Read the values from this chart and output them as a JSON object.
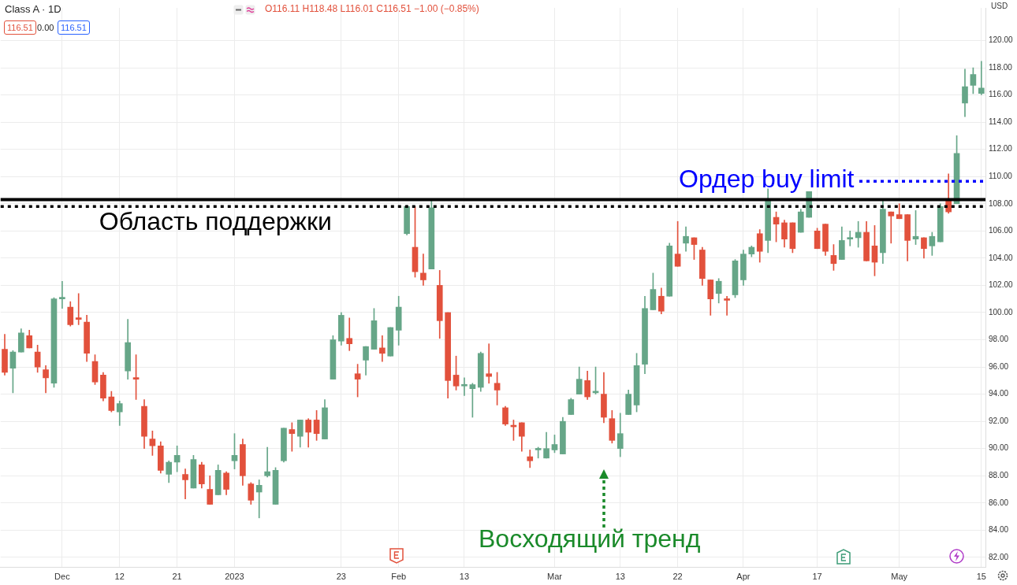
{
  "chart_data": {
    "type": "candlestick",
    "title": "Class A · 1D",
    "ylabel": "USD",
    "categories": [
      null,
      null,
      null,
      null,
      null,
      null,
      null,
      "Dec",
      null,
      null,
      null,
      null,
      null,
      null,
      "12",
      null,
      null,
      null,
      null,
      null,
      null,
      "21",
      null,
      null,
      null,
      null,
      null,
      null,
      "2023",
      null,
      null,
      null,
      null,
      null,
      null,
      null,
      null,
      null,
      null,
      null,
      null,
      "23",
      null,
      null,
      null,
      null,
      null,
      null,
      "Feb",
      null,
      null,
      null,
      null,
      null,
      null,
      null,
      "13",
      null,
      null,
      null,
      null,
      null,
      null,
      null,
      null,
      null,
      null,
      "Mar",
      null,
      null,
      null,
      null,
      null,
      null,
      null,
      "13",
      null,
      null,
      null,
      null,
      null,
      null,
      "22",
      null,
      null,
      null,
      null,
      null,
      null,
      null,
      "Apr",
      null,
      null,
      null,
      null,
      null,
      null,
      null,
      null,
      "17",
      null,
      null,
      null,
      null,
      null,
      null,
      null,
      null,
      null,
      "May",
      null,
      null,
      null,
      null,
      null,
      null,
      null,
      null,
      null,
      "15"
    ],
    "ohlc": [
      [
        97.3,
        98.4,
        95.4,
        95.6
      ],
      [
        95.9,
        97.2,
        94.1,
        97.1
      ],
      [
        97.1,
        98.8,
        97.1,
        98.5
      ],
      [
        98.3,
        98.7,
        97.4,
        97.4
      ],
      [
        97.1,
        97.6,
        95.6,
        96.0
      ],
      [
        95.8,
        96.1,
        94.1,
        95.2
      ],
      [
        94.8,
        101.1,
        94.5,
        101.0
      ],
      [
        101.0,
        102.3,
        100.3,
        101.0
      ],
      [
        100.4,
        100.8,
        99.0,
        99.1
      ],
      [
        99.5,
        101.4,
        99.1,
        99.5
      ],
      [
        99.3,
        99.8,
        96.4,
        97.0
      ],
      [
        96.4,
        96.9,
        94.7,
        94.9
      ],
      [
        95.4,
        95.6,
        93.5,
        93.7
      ],
      [
        93.8,
        94.2,
        92.7,
        92.8
      ],
      [
        92.7,
        93.5,
        91.7,
        93.3
      ],
      [
        95.7,
        99.5,
        95.1,
        97.8
      ],
      [
        95.2,
        96.9,
        93.6,
        95.1
      ],
      [
        93.1,
        93.6,
        90.0,
        90.9
      ],
      [
        90.7,
        91.3,
        89.5,
        90.2
      ],
      [
        90.2,
        90.5,
        88.2,
        88.4
      ],
      [
        88.1,
        89.1,
        87.5,
        89.0
      ],
      [
        89.0,
        90.2,
        88.3,
        89.5
      ],
      [
        88.1,
        88.5,
        86.3,
        87.7
      ],
      [
        87.1,
        89.5,
        87.1,
        89.2
      ],
      [
        88.8,
        89.0,
        87.1,
        87.4
      ],
      [
        87.0,
        88.0,
        85.9,
        85.9
      ],
      [
        86.6,
        88.8,
        86.6,
        88.4
      ],
      [
        88.2,
        88.3,
        86.6,
        87.0
      ],
      [
        89.1,
        91.1,
        88.5,
        89.5
      ],
      [
        90.3,
        90.7,
        87.3,
        88.0
      ],
      [
        87.4,
        87.5,
        85.9,
        86.2
      ],
      [
        86.8,
        87.7,
        84.9,
        87.3
      ],
      [
        88.0,
        90.1,
        87.9,
        88.3
      ],
      [
        85.9,
        88.6,
        85.9,
        88.4
      ],
      [
        89.1,
        91.5,
        89.0,
        91.5
      ],
      [
        91.4,
        91.9,
        89.8,
        91.1
      ],
      [
        90.9,
        92.1,
        90.1,
        92.1
      ],
      [
        92.1,
        92.2,
        90.1,
        91.2
      ],
      [
        92.1,
        92.8,
        90.6,
        91.1
      ],
      [
        90.7,
        93.6,
        90.7,
        93.0
      ],
      [
        95.1,
        98.3,
        95.1,
        98.0
      ],
      [
        97.9,
        100.0,
        97.6,
        99.8
      ],
      [
        98.1,
        99.6,
        97.2,
        97.7
      ],
      [
        95.5,
        96.2,
        93.8,
        95.1
      ],
      [
        96.5,
        97.5,
        95.4,
        97.5
      ],
      [
        97.3,
        100.3,
        97.3,
        99.4
      ],
      [
        97.4,
        98.3,
        96.4,
        97.0
      ],
      [
        96.8,
        98.9,
        96.8,
        98.9
      ],
      [
        98.7,
        101.2,
        97.6,
        100.4
      ],
      [
        105.8,
        107.9,
        105.7,
        107.8
      ],
      [
        104.8,
        107.8,
        102.6,
        103.0
      ],
      [
        102.9,
        104.3,
        102.0,
        102.4
      ],
      [
        103.2,
        108.3,
        103.2,
        107.7
      ],
      [
        102.0,
        103.1,
        98.1,
        99.4
      ],
      [
        100.0,
        100.0,
        93.7,
        95.0
      ],
      [
        95.4,
        96.8,
        94.3,
        94.6
      ],
      [
        94.6,
        95.2,
        93.9,
        94.7
      ],
      [
        94.4,
        94.8,
        92.3,
        94.7
      ],
      [
        94.5,
        97.1,
        94.2,
        97.0
      ],
      [
        95.5,
        97.7,
        94.8,
        95.3
      ],
      [
        94.8,
        95.6,
        93.2,
        94.3
      ],
      [
        93.0,
        93.1,
        91.7,
        91.8
      ],
      [
        91.6,
        92.1,
        90.6,
        91.6
      ],
      [
        91.9,
        91.9,
        89.8,
        90.9
      ],
      [
        89.4,
        89.9,
        88.6,
        89.1
      ],
      [
        89.9,
        90.1,
        89.3,
        89.9
      ],
      [
        89.3,
        91.2,
        89.3,
        90.0
      ],
      [
        89.9,
        91.0,
        89.7,
        90.3
      ],
      [
        89.6,
        92.3,
        89.6,
        92.0
      ],
      [
        92.5,
        93.7,
        92.5,
        93.6
      ],
      [
        94.0,
        96.0,
        94.0,
        95.1
      ],
      [
        95.0,
        95.7,
        93.6,
        93.8
      ],
      [
        94.1,
        96.0,
        94.0,
        94.2
      ],
      [
        94.0,
        95.6,
        91.9,
        92.3
      ],
      [
        92.2,
        92.8,
        90.4,
        90.6
      ],
      [
        90.0,
        92.6,
        89.4,
        91.1
      ],
      [
        92.5,
        94.3,
        92.5,
        94.0
      ],
      [
        93.2,
        97.0,
        92.7,
        96.1
      ],
      [
        96.2,
        101.2,
        95.5,
        100.3
      ],
      [
        100.2,
        102.9,
        100.2,
        101.7
      ],
      [
        101.2,
        101.8,
        99.9,
        100.1
      ],
      [
        101.2,
        105.1,
        101.2,
        104.9
      ],
      [
        104.3,
        106.7,
        103.4,
        103.4
      ],
      [
        105.1,
        106.3,
        104.5,
        105.6
      ],
      [
        105.5,
        105.5,
        103.9,
        105.0
      ],
      [
        104.6,
        104.8,
        102.0,
        102.5
      ],
      [
        102.4,
        102.4,
        99.8,
        101.0
      ],
      [
        101.4,
        102.5,
        100.7,
        102.3
      ],
      [
        100.9,
        101.2,
        99.8,
        100.9
      ],
      [
        101.3,
        103.9,
        101.1,
        103.8
      ],
      [
        102.4,
        104.6,
        102.0,
        104.3
      ],
      [
        104.3,
        104.9,
        104.1,
        104.8
      ],
      [
        105.8,
        106.1,
        103.7,
        104.5
      ],
      [
        105.3,
        109.1,
        104.4,
        108.3
      ],
      [
        107.0,
        107.4,
        105.2,
        106.5
      ],
      [
        106.6,
        106.8,
        104.8,
        105.4
      ],
      [
        106.6,
        106.6,
        104.4,
        104.7
      ],
      [
        105.9,
        107.6,
        105.9,
        107.4
      ],
      [
        107.0,
        108.9,
        107.0,
        108.9
      ],
      [
        106.0,
        106.2,
        104.7,
        104.7
      ],
      [
        106.5,
        106.5,
        104.2,
        104.5
      ],
      [
        104.2,
        105.0,
        103.1,
        103.6
      ],
      [
        103.9,
        106.3,
        103.9,
        105.3
      ],
      [
        105.4,
        106.0,
        104.9,
        105.5
      ],
      [
        105.5,
        106.7,
        104.8,
        105.9
      ],
      [
        105.9,
        106.7,
        103.8,
        103.8
      ],
      [
        104.9,
        106.4,
        102.7,
        103.7
      ],
      [
        104.4,
        108.2,
        103.6,
        107.6
      ],
      [
        107.4,
        107.4,
        105.1,
        107.1
      ],
      [
        107.2,
        108.0,
        106.9,
        106.9
      ],
      [
        107.2,
        107.2,
        103.8,
        105.3
      ],
      [
        105.4,
        107.5,
        105.0,
        105.6
      ],
      [
        105.5,
        105.5,
        104.0,
        104.7
      ],
      [
        104.9,
        105.9,
        104.2,
        105.6
      ],
      [
        105.2,
        108.0,
        105.2,
        107.8
      ],
      [
        108.2,
        110.2,
        107.3,
        107.4
      ],
      [
        108.0,
        113.0,
        108.0,
        111.7
      ],
      [
        115.4,
        117.9,
        114.4,
        116.6
      ],
      [
        116.7,
        118.0,
        116.1,
        117.5
      ],
      [
        116.11,
        118.48,
        116.01,
        116.51
      ]
    ],
    "colors": [
      "#e2513c",
      "#66a688",
      "#66a688",
      "#e2513c",
      "#e2513c",
      "#e2513c",
      "#66a688",
      "#66a688",
      "#e2513c",
      "#e2513c",
      "#e2513c",
      "#e2513c",
      "#e2513c",
      "#e2513c",
      "#66a688",
      "#66a688",
      "#e2513c",
      "#e2513c",
      "#e2513c",
      "#e2513c",
      "#66a688",
      "#66a688",
      "#e2513c",
      "#66a688",
      "#e2513c",
      "#e2513c",
      "#66a688",
      "#e2513c",
      "#66a688",
      "#e2513c",
      "#e2513c",
      "#66a688",
      "#66a688",
      "#66a688",
      "#66a688",
      "#e2513c",
      "#66a688",
      "#e2513c",
      "#e2513c",
      "#66a688",
      "#66a688",
      "#66a688",
      "#e2513c",
      "#e2513c",
      "#66a688",
      "#66a688",
      "#e2513c",
      "#66a688",
      "#66a688",
      "#66a688",
      "#e2513c",
      "#e2513c",
      "#66a688",
      "#e2513c",
      "#e2513c",
      "#e2513c",
      "#66a688",
      "#66a688",
      "#66a688",
      "#e2513c",
      "#e2513c",
      "#e2513c",
      "#e2513c",
      "#e2513c",
      "#e2513c",
      "#66a688",
      "#66a688",
      "#66a688",
      "#66a688",
      "#66a688",
      "#66a688",
      "#e2513c",
      "#66a688",
      "#e2513c",
      "#e2513c",
      "#66a688",
      "#66a688",
      "#66a688",
      "#66a688",
      "#66a688",
      "#e2513c",
      "#66a688",
      "#e2513c",
      "#66a688",
      "#e2513c",
      "#e2513c",
      "#e2513c",
      "#66a688",
      "#e2513c",
      "#66a688",
      "#66a688",
      "#66a688",
      "#e2513c",
      "#66a688",
      "#e2513c",
      "#e2513c",
      "#e2513c",
      "#66a688",
      "#66a688",
      "#e2513c",
      "#e2513c",
      "#e2513c",
      "#66a688",
      "#66a688",
      "#66a688",
      "#e2513c",
      "#e2513c",
      "#66a688",
      "#e2513c",
      "#e2513c",
      "#e2513c",
      "#66a688",
      "#e2513c",
      "#66a688",
      "#66a688",
      "#e2513c",
      "#66a688",
      "#66a688",
      "#66a688",
      "#66a688"
    ],
    "ylim": [
      81.3,
      122.4
    ],
    "yticks": [
      {
        "value": 82,
        "label": "82.00"
      },
      {
        "value": 84,
        "label": "84.00"
      },
      {
        "value": 86,
        "label": "86.00"
      },
      {
        "value": 88,
        "label": "88.00"
      },
      {
        "value": 90,
        "label": "90.00"
      },
      {
        "value": 92,
        "label": "92.00"
      },
      {
        "value": 94,
        "label": "94.00"
      },
      {
        "value": 96,
        "label": "96.00"
      },
      {
        "value": 98,
        "label": "98.00"
      },
      {
        "value": 100,
        "label": "100.00"
      },
      {
        "value": 102,
        "label": "102.00"
      },
      {
        "value": 104,
        "label": "104.00"
      },
      {
        "value": 106,
        "label": "106.00"
      },
      {
        "value": 108,
        "label": "108.00"
      },
      {
        "value": 110,
        "label": "110.00"
      },
      {
        "value": 112,
        "label": "112.00"
      },
      {
        "value": 114,
        "label": "114.00"
      },
      {
        "value": 116,
        "label": "116.00"
      },
      {
        "value": 118,
        "label": "118.00"
      },
      {
        "value": 120,
        "label": "120.00"
      }
    ],
    "grid": true,
    "ref_lines": [
      {
        "axis": "y",
        "value": 108.3,
        "color": "#000000",
        "line_style": "solid"
      },
      {
        "axis": "y",
        "value": 107.8,
        "color": "#000000",
        "line_style": "dotted",
        "label": "Область поддержки"
      },
      {
        "axis": "y",
        "value": 109.65,
        "color": "#0000ff",
        "line_style": "dotted",
        "label": "Ордер buy limit"
      }
    ],
    "annotations": [
      "O116.11 H118.48 L116.01 C116.51 −1.00 (−0.85%)",
      "116.51",
      "0.00",
      "116.51",
      "Восходящий тренд"
    ]
  }
}
